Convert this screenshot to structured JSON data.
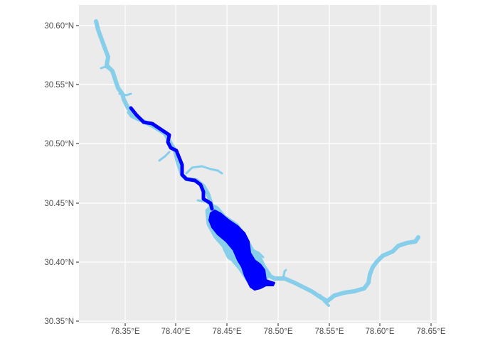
{
  "map": {
    "panel_background": "#ebebeb",
    "grid_color": "#ffffff",
    "colors": {
      "full_reservoir": "#87ceeb",
      "highlighted_reach": "#0000ff"
    },
    "x_axis": {
      "ticks": [
        "78.35°E",
        "78.40°E",
        "78.45°E",
        "78.50°E",
        "78.55°E",
        "78.60°E",
        "78.65°E"
      ],
      "range": [
        78.315,
        78.655
      ]
    },
    "y_axis": {
      "ticks": [
        "30.60°N",
        "30.55°N",
        "30.50°N",
        "30.45°N",
        "30.40°N",
        "30.35°N"
      ],
      "range": [
        30.345,
        30.61
      ]
    }
  }
}
